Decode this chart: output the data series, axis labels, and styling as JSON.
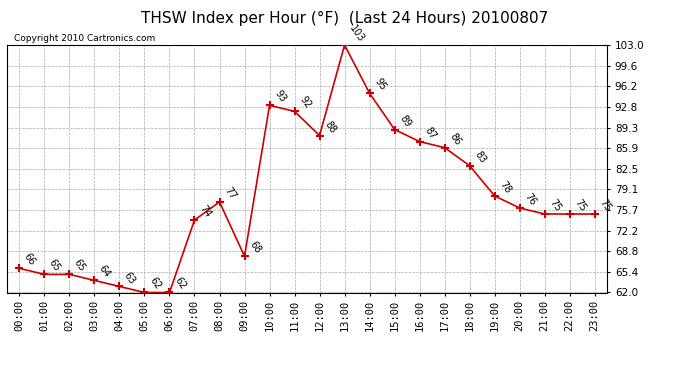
{
  "title": "THSW Index per Hour (°F)  (Last 24 Hours) 20100807",
  "copyright": "Copyright 2010 Cartronics.com",
  "hours": [
    0,
    1,
    2,
    3,
    4,
    5,
    6,
    7,
    8,
    9,
    10,
    11,
    12,
    13,
    14,
    15,
    16,
    17,
    18,
    19,
    20,
    21,
    22,
    23
  ],
  "x_labels": [
    "00:00",
    "01:00",
    "02:00",
    "03:00",
    "04:00",
    "05:00",
    "06:00",
    "07:00",
    "08:00",
    "09:00",
    "10:00",
    "11:00",
    "12:00",
    "13:00",
    "14:00",
    "15:00",
    "16:00",
    "17:00",
    "18:00",
    "19:00",
    "20:00",
    "21:00",
    "22:00",
    "23:00"
  ],
  "values": [
    66,
    65,
    65,
    64,
    63,
    62,
    62,
    74,
    77,
    68,
    93,
    92,
    88,
    103,
    95,
    89,
    87,
    86,
    83,
    78,
    76,
    75,
    75,
    75
  ],
  "line_color": "#cc0000",
  "marker": "+",
  "marker_size": 6,
  "marker_color": "#cc0000",
  "bg_color": "#ffffff",
  "grid_color": "#aaaaaa",
  "ylim": [
    62.0,
    103.0
  ],
  "yticks": [
    62.0,
    65.4,
    68.8,
    72.2,
    75.7,
    79.1,
    82.5,
    85.9,
    89.3,
    92.8,
    96.2,
    99.6,
    103.0
  ],
  "title_fontsize": 11,
  "label_fontsize": 7.5,
  "annotation_fontsize": 7,
  "copyright_fontsize": 6.5
}
